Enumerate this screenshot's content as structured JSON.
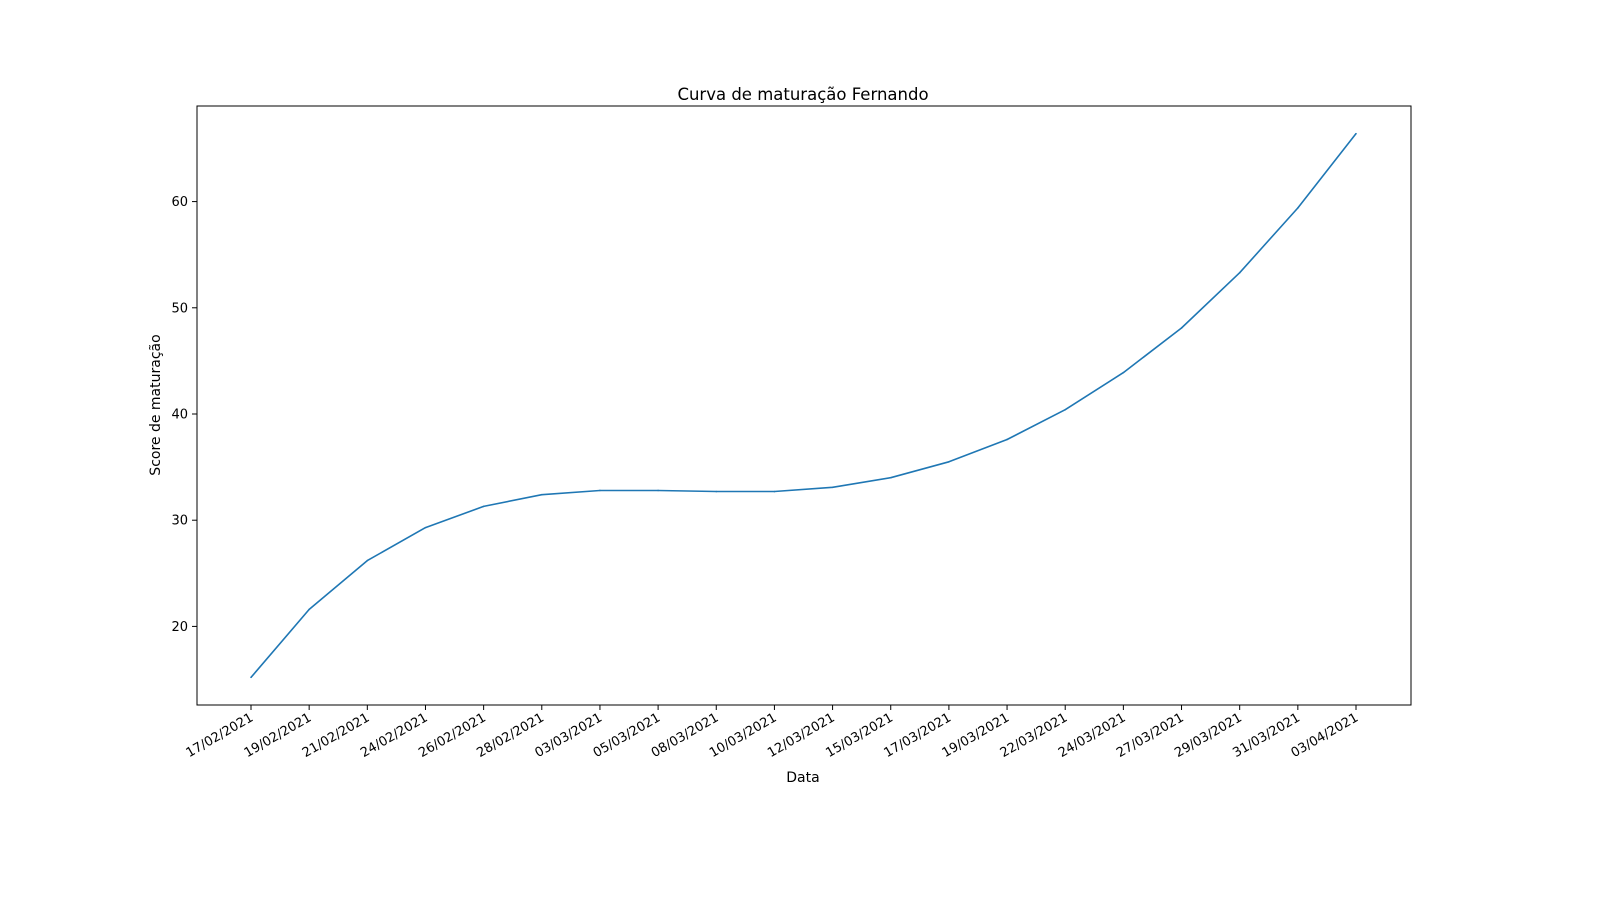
{
  "chart_data": {
    "type": "line",
    "title": "Curva de maturação Fernando",
    "xlabel": "Data",
    "ylabel": "Score de maturação",
    "categories": [
      "17/02/2021",
      "19/02/2021",
      "21/02/2021",
      "24/02/2021",
      "26/02/2021",
      "28/02/2021",
      "03/03/2021",
      "05/03/2021",
      "08/03/2021",
      "10/03/2021",
      "12/03/2021",
      "15/03/2021",
      "17/03/2021",
      "19/03/2021",
      "22/03/2021",
      "24/03/2021",
      "27/03/2021",
      "29/03/2021",
      "31/03/2021",
      "03/04/2021"
    ],
    "series": [
      {
        "values": [
          15.2,
          21.6,
          26.2,
          29.3,
          31.3,
          32.4,
          32.8,
          32.8,
          32.7,
          32.7,
          33.1,
          34.0,
          35.5,
          37.6,
          40.4,
          43.9,
          48.1,
          53.3,
          59.4,
          66.4
        ],
        "color": "#1f77b4"
      }
    ],
    "yticks": [
      20,
      30,
      40,
      50,
      60
    ],
    "ylim": [
      12.6,
      69.0
    ],
    "grid": false,
    "legend": "none"
  }
}
